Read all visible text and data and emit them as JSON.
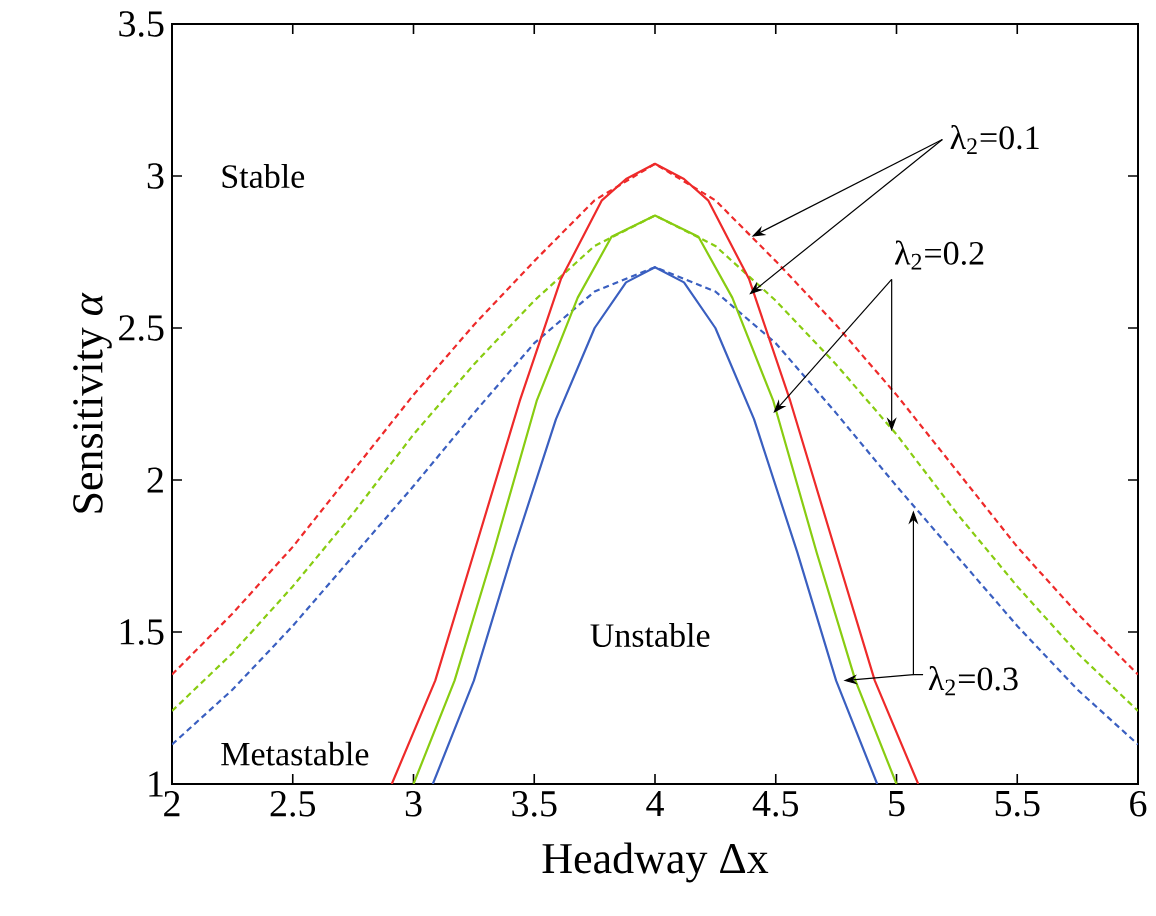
{
  "chart_data": {
    "type": "line",
    "xlabel": "Headway Δx",
    "ylabel": "Sensitivity *α*",
    "xlim": [
      2,
      6
    ],
    "ylim": [
      1,
      3.5
    ],
    "xticks": [
      2,
      2.5,
      3,
      3.5,
      4,
      4.5,
      5,
      5.5,
      6
    ],
    "yticks": [
      1,
      1.5,
      2,
      2.5,
      3,
      3.5
    ],
    "grid": false,
    "marker": "none",
    "series": [
      {
        "color": "#ee2a2a",
        "line_style": "dashed",
        "x": [
          2,
          2.25,
          2.5,
          2.75,
          3,
          3.25,
          3.5,
          3.75,
          4,
          4.25,
          4.5,
          4.75,
          5,
          5.25,
          5.5,
          5.75,
          6
        ],
        "values": [
          1.36,
          1.56,
          1.78,
          2.03,
          2.28,
          2.51,
          2.72,
          2.92,
          3.04,
          2.92,
          2.72,
          2.51,
          2.28,
          2.03,
          1.78,
          1.56,
          1.36
        ]
      },
      {
        "color": "#88cc11",
        "line_style": "dashed",
        "x": [
          2,
          2.25,
          2.5,
          2.75,
          3,
          3.25,
          3.5,
          3.75,
          4,
          4.25,
          4.5,
          4.75,
          5,
          5.25,
          5.5,
          5.75,
          6
        ],
        "values": [
          1.24,
          1.43,
          1.65,
          1.89,
          2.15,
          2.38,
          2.59,
          2.77,
          2.87,
          2.77,
          2.59,
          2.38,
          2.15,
          1.89,
          1.65,
          1.43,
          1.24
        ]
      },
      {
        "color": "#3a5fc0",
        "line_style": "dashed",
        "x": [
          2,
          2.25,
          2.5,
          2.75,
          3,
          3.25,
          3.5,
          3.75,
          4,
          4.25,
          4.5,
          4.75,
          5,
          5.25,
          5.5,
          5.75,
          6
        ],
        "values": [
          1.13,
          1.31,
          1.52,
          1.75,
          1.98,
          2.22,
          2.45,
          2.62,
          2.7,
          2.62,
          2.45,
          2.22,
          1.98,
          1.75,
          1.52,
          1.31,
          1.13
        ]
      },
      {
        "color": "#ee2a2a",
        "line_style": "solid",
        "x": [
          2.91,
          3.09,
          3.25,
          3.44,
          3.61,
          3.78,
          3.88,
          4,
          4.12,
          4.22,
          4.39,
          4.56,
          4.75,
          4.91,
          5.09
        ],
        "values": [
          1,
          1.34,
          1.76,
          2.26,
          2.66,
          2.92,
          2.99,
          3.04,
          2.99,
          2.92,
          2.66,
          2.26,
          1.76,
          1.34,
          1
        ]
      },
      {
        "color": "#88cc11",
        "line_style": "solid",
        "x": [
          3,
          3.17,
          3.33,
          3.51,
          3.68,
          3.82,
          4,
          4.18,
          4.32,
          4.49,
          4.67,
          4.83,
          5
        ],
        "values": [
          1,
          1.34,
          1.76,
          2.26,
          2.6,
          2.8,
          2.87,
          2.8,
          2.6,
          2.26,
          1.76,
          1.34,
          1
        ]
      },
      {
        "color": "#3a5fc0",
        "line_style": "solid",
        "x": [
          3.08,
          3.25,
          3.41,
          3.59,
          3.75,
          3.88,
          4,
          4.12,
          4.25,
          4.41,
          4.59,
          4.75,
          4.92
        ],
        "values": [
          1,
          1.34,
          1.76,
          2.2,
          2.5,
          2.65,
          2.7,
          2.65,
          2.5,
          2.2,
          1.76,
          1.34,
          1
        ]
      }
    ],
    "annotations": [
      "Stable",
      "Metastable",
      "Unstable",
      {
        "text": "λ$_{2}$=0.1",
        "x": 4.4,
        "y": 2.8
      },
      {
        "text": "λ$_{2}$=0.2",
        "x": 4.49,
        "y": 2.22
      },
      {
        "text": "λ$_{2}$=0.3",
        "x": 5.07,
        "y": 1.9
      }
    ]
  }
}
